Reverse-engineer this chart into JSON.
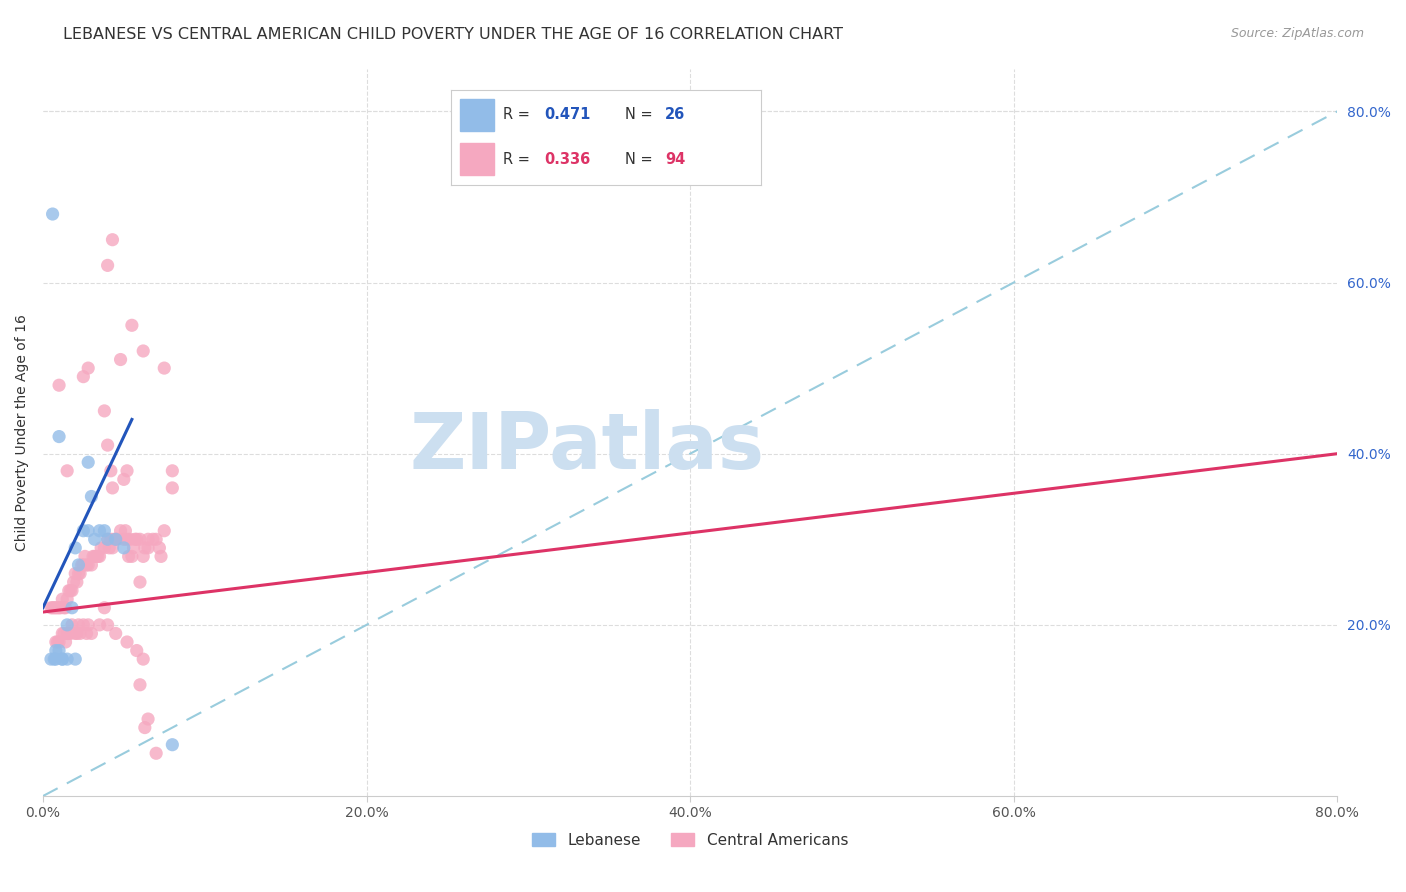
{
  "title": "LEBANESE VS CENTRAL AMERICAN CHILD POVERTY UNDER THE AGE OF 16 CORRELATION CHART",
  "source": "Source: ZipAtlas.com",
  "ylabel": "Child Poverty Under the Age of 16",
  "xlim": [
    0,
    80
  ],
  "ylim": [
    0,
    85
  ],
  "xtick_labels": [
    "0.0%",
    "20.0%",
    "40.0%",
    "60.0%",
    "80.0%"
  ],
  "xtick_values": [
    0,
    20,
    40,
    60,
    80
  ],
  "ytick_labels": [
    "20.0%",
    "40.0%",
    "60.0%",
    "80.0%"
  ],
  "ytick_values": [
    20,
    40,
    60,
    80
  ],
  "lebanese_color": "#92bce8",
  "central_american_color": "#f5a8c0",
  "lebanese_line_color": "#2255bb",
  "central_american_line_color": "#dd3366",
  "ref_line_color": "#99ccdd",
  "watermark_text": "ZIPatlas",
  "watermark_color": "#ccdff0",
  "lebanese_points": [
    [
      0.5,
      16
    ],
    [
      0.7,
      16
    ],
    [
      0.8,
      17
    ],
    [
      1.0,
      17
    ],
    [
      1.2,
      16
    ],
    [
      1.5,
      20
    ],
    [
      1.8,
      22
    ],
    [
      2.0,
      29
    ],
    [
      2.2,
      27
    ],
    [
      2.5,
      31
    ],
    [
      2.8,
      31
    ],
    [
      3.0,
      35
    ],
    [
      3.2,
      30
    ],
    [
      3.5,
      31
    ],
    [
      3.8,
      31
    ],
    [
      4.0,
      30
    ],
    [
      4.5,
      30
    ],
    [
      5.0,
      29
    ],
    [
      0.6,
      68
    ],
    [
      1.0,
      42
    ],
    [
      2.8,
      39
    ],
    [
      0.8,
      16
    ],
    [
      1.5,
      16
    ],
    [
      2.0,
      16
    ],
    [
      8.0,
      6
    ],
    [
      1.2,
      16
    ]
  ],
  "central_american_points": [
    [
      0.5,
      22
    ],
    [
      0.6,
      22
    ],
    [
      0.7,
      22
    ],
    [
      0.8,
      22
    ],
    [
      0.9,
      22
    ],
    [
      1.0,
      22
    ],
    [
      1.1,
      22
    ],
    [
      1.2,
      23
    ],
    [
      1.3,
      22
    ],
    [
      1.4,
      22
    ],
    [
      1.5,
      23
    ],
    [
      1.6,
      24
    ],
    [
      1.7,
      24
    ],
    [
      1.8,
      24
    ],
    [
      1.9,
      25
    ],
    [
      2.0,
      26
    ],
    [
      2.1,
      25
    ],
    [
      2.2,
      26
    ],
    [
      2.3,
      26
    ],
    [
      2.4,
      27
    ],
    [
      2.5,
      27
    ],
    [
      2.6,
      28
    ],
    [
      2.7,
      27
    ],
    [
      2.8,
      27
    ],
    [
      3.0,
      27
    ],
    [
      3.1,
      28
    ],
    [
      3.2,
      28
    ],
    [
      3.3,
      28
    ],
    [
      3.4,
      28
    ],
    [
      3.5,
      28
    ],
    [
      3.6,
      29
    ],
    [
      3.8,
      29
    ],
    [
      4.0,
      30
    ],
    [
      4.1,
      29
    ],
    [
      4.2,
      30
    ],
    [
      4.3,
      29
    ],
    [
      4.4,
      30
    ],
    [
      4.5,
      30
    ],
    [
      4.6,
      30
    ],
    [
      4.8,
      31
    ],
    [
      5.0,
      30
    ],
    [
      5.1,
      31
    ],
    [
      5.2,
      30
    ],
    [
      5.3,
      28
    ],
    [
      5.4,
      30
    ],
    [
      5.5,
      28
    ],
    [
      5.6,
      29
    ],
    [
      5.7,
      30
    ],
    [
      5.8,
      30
    ],
    [
      6.0,
      30
    ],
    [
      6.2,
      28
    ],
    [
      6.3,
      29
    ],
    [
      6.5,
      29
    ],
    [
      6.8,
      30
    ],
    [
      7.0,
      30
    ],
    [
      7.2,
      29
    ],
    [
      7.3,
      28
    ],
    [
      7.5,
      31
    ],
    [
      8.0,
      38
    ],
    [
      0.8,
      18
    ],
    [
      0.9,
      18
    ],
    [
      1.0,
      18
    ],
    [
      1.2,
      19
    ],
    [
      1.3,
      19
    ],
    [
      1.4,
      18
    ],
    [
      1.5,
      19
    ],
    [
      1.6,
      19
    ],
    [
      1.7,
      19
    ],
    [
      1.8,
      20
    ],
    [
      2.0,
      19
    ],
    [
      2.1,
      19
    ],
    [
      2.2,
      20
    ],
    [
      2.3,
      19
    ],
    [
      2.5,
      20
    ],
    [
      2.7,
      19
    ],
    [
      2.8,
      20
    ],
    [
      3.0,
      19
    ],
    [
      3.5,
      20
    ],
    [
      4.0,
      20
    ],
    [
      4.5,
      19
    ],
    [
      5.2,
      18
    ],
    [
      5.8,
      17
    ],
    [
      6.2,
      16
    ],
    [
      6.3,
      8
    ],
    [
      6.5,
      9
    ],
    [
      7.0,
      5
    ],
    [
      6.0,
      13
    ],
    [
      2.5,
      49
    ],
    [
      2.8,
      50
    ],
    [
      3.8,
      45
    ],
    [
      4.0,
      41
    ],
    [
      4.2,
      38
    ],
    [
      4.3,
      36
    ],
    [
      4.0,
      62
    ],
    [
      4.8,
      51
    ],
    [
      3.8,
      22
    ],
    [
      5.0,
      37
    ],
    [
      1.5,
      38
    ],
    [
      6.2,
      52
    ],
    [
      1.0,
      48
    ],
    [
      5.5,
      55
    ],
    [
      7.5,
      50
    ],
    [
      5.2,
      38
    ],
    [
      8.0,
      36
    ],
    [
      6.5,
      30
    ],
    [
      4.3,
      65
    ],
    [
      6.0,
      25
    ]
  ],
  "lebanese_regression": {
    "x_start": 0,
    "y_start": 22,
    "x_end": 5.5,
    "y_end": 44
  },
  "central_american_regression": {
    "x_start": 0,
    "y_start": 21.5,
    "x_end": 80,
    "y_end": 40
  },
  "title_fontsize": 11.5,
  "axis_label_fontsize": 10,
  "tick_fontsize": 10,
  "legend_fontsize": 11
}
